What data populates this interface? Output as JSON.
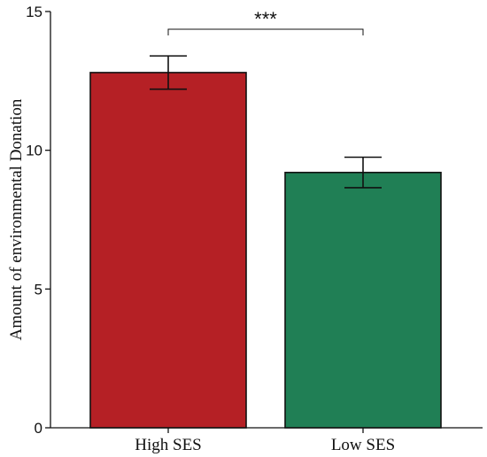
{
  "chart_data": {
    "type": "bar",
    "categories": [
      "High SES",
      "Low SES"
    ],
    "values": [
      12.8,
      9.2
    ],
    "error": [
      0.6,
      0.55
    ],
    "colors": [
      "#b52025",
      "#207f55"
    ],
    "ylabel": "Amount of environmental Donation",
    "xlabel": "",
    "ylim": [
      0,
      15
    ],
    "yticks": [
      0,
      5,
      10,
      15
    ],
    "significance": {
      "label": "***",
      "between": [
        0,
        1
      ]
    },
    "grid": false
  }
}
